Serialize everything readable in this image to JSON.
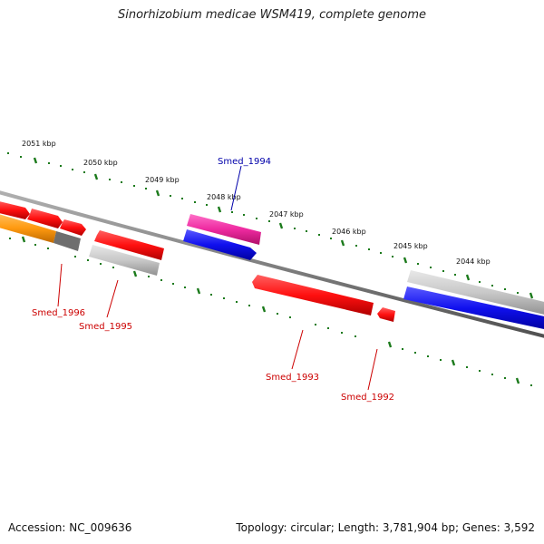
{
  "title": "Sinorhizobium medicae WSM419, complete genome",
  "footer": {
    "accession": "Accession: NC_009636",
    "summary": "Topology: circular; Length: 3,781,904 bp; Genes: 3,592"
  },
  "colors": {
    "tick": "#1b7a1b",
    "backbone": "#808080",
    "red": "#ff1010",
    "blue": "#1010ee",
    "grey": "#c8c8c8",
    "orange": "#ff9a10",
    "magenta": "#ee2aa0",
    "label_red": "#cc0000",
    "label_blue": "#0000aa"
  },
  "kbp_labels": [
    "2051 kbp",
    "2050 kbp",
    "2049 kbp",
    "2048 kbp",
    "2047 kbp",
    "2046 kbp",
    "2045 kbp",
    "2044 kbp"
  ],
  "gene_labels": [
    {
      "id": "smed-1994",
      "text": "Smed_1994",
      "color": "blue"
    },
    {
      "id": "smed-1996",
      "text": "Smed_1996",
      "color": "red"
    },
    {
      "id": "smed-1995",
      "text": "Smed_1995",
      "color": "red"
    },
    {
      "id": "smed-1993",
      "text": "Smed_1993",
      "color": "red"
    },
    {
      "id": "smed-1992",
      "text": "Smed_1992",
      "color": "red"
    }
  ],
  "features": [
    {
      "id": "f1",
      "strand": "plus",
      "color": "red"
    },
    {
      "id": "f2",
      "strand": "plus",
      "color": "red"
    },
    {
      "id": "f3",
      "strand": "plus",
      "color": "red"
    },
    {
      "id": "f4",
      "strand": "plus",
      "color": "magenta"
    },
    {
      "id": "f5",
      "strand": "plus",
      "color": "grey"
    },
    {
      "id": "f6",
      "strand": "minus",
      "color": "orange"
    },
    {
      "id": "f7",
      "strand": "minus",
      "color": "red"
    },
    {
      "id": "f8",
      "strand": "minus",
      "color": "grey"
    },
    {
      "id": "f9",
      "strand": "minus",
      "color": "blue"
    },
    {
      "id": "f10",
      "strand": "minus",
      "color": "red"
    },
    {
      "id": "f11",
      "strand": "minus",
      "color": "red"
    },
    {
      "id": "f12",
      "strand": "minus",
      "color": "blue"
    }
  ]
}
